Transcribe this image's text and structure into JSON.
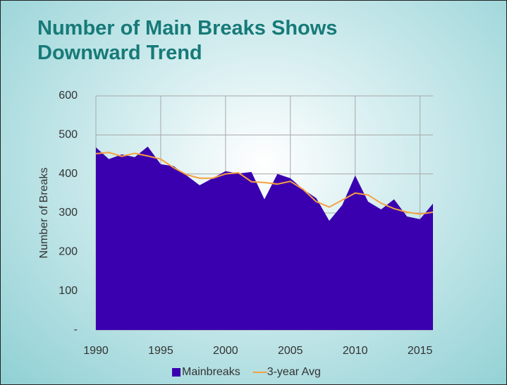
{
  "chart_data": {
    "type": "area",
    "title": "Number of Main Breaks Shows Downward Trend",
    "y_label": "Number of Breaks",
    "x": [
      1990,
      1991,
      1992,
      1993,
      1994,
      1995,
      1996,
      1997,
      1998,
      1999,
      2000,
      2001,
      2002,
      2003,
      2004,
      2005,
      2006,
      2007,
      2008,
      2009,
      2010,
      2011,
      2012,
      2013,
      2014,
      2015,
      2016
    ],
    "series": [
      {
        "name": "Mainbreaks",
        "type": "area",
        "color": "#3a00b0",
        "values": [
          468,
          438,
          450,
          443,
          470,
          425,
          420,
          396,
          371,
          389,
          407,
          401,
          405,
          335,
          400,
          389,
          360,
          338,
          280,
          320,
          396,
          329,
          309,
          335,
          291,
          284,
          324
        ]
      },
      {
        "name": "3-year Avg",
        "type": "line",
        "color": "#f5a040",
        "values": [
          452,
          455,
          445,
          453,
          446,
          438,
          416,
          398,
          389,
          389,
          400,
          403,
          380,
          378,
          374,
          381,
          360,
          329,
          315,
          333,
          351,
          346,
          325,
          311,
          302,
          297,
          302
        ]
      }
    ],
    "xlim": [
      1990,
      2016
    ],
    "xticks": [
      1990,
      1995,
      2000,
      2005,
      2010,
      2015
    ],
    "ylim": [
      0,
      600
    ],
    "yticks": [
      {
        "value": 0,
        "label": "-"
      },
      100,
      200,
      300,
      400,
      500,
      600
    ],
    "grid": true,
    "legend": "bottom"
  }
}
